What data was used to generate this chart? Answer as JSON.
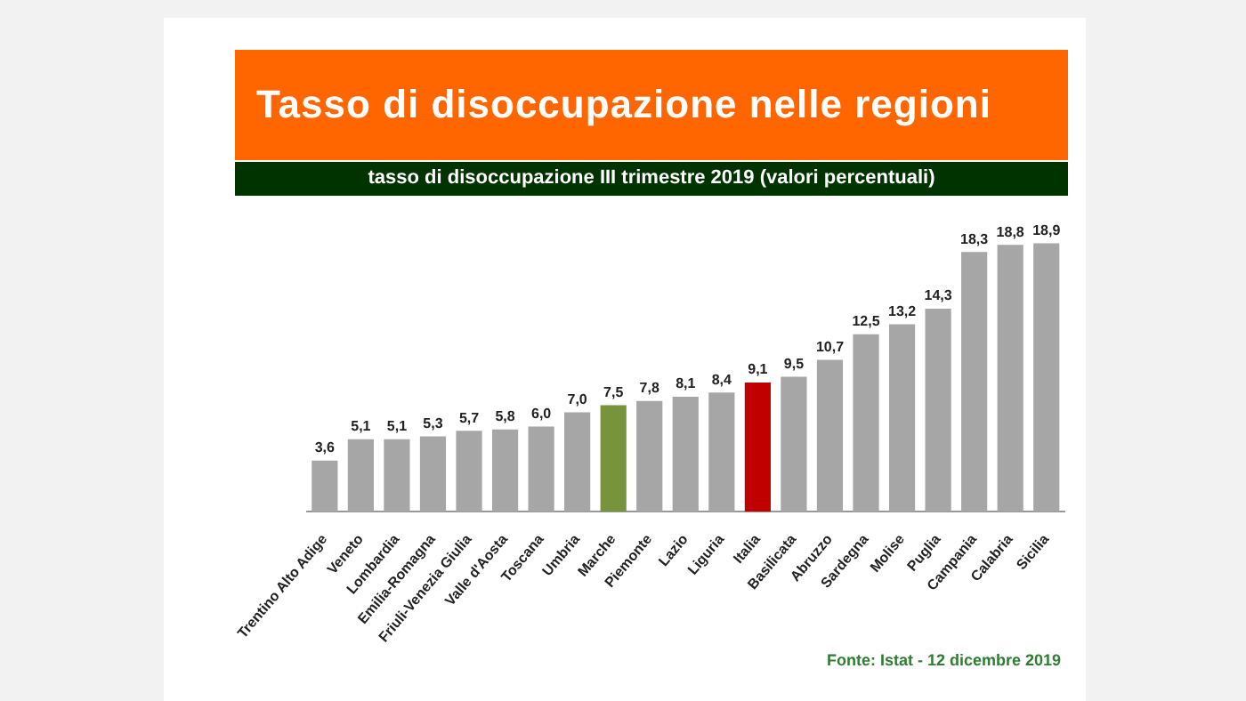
{
  "chart_data": {
    "type": "bar",
    "title": "Tasso di disoccupazione nelle regioni",
    "subtitle": "tasso di disoccupazione III trimestre 2019 (valori percentuali)",
    "categories": [
      "Trentino Alto Adige",
      "Veneto",
      "Lombardia",
      "Emilia-Romagna",
      "Friuli-Venezia Giulia",
      "Valle d'Aosta",
      "Toscana",
      "Umbria",
      "Marche",
      "Piemonte",
      "Lazio",
      "Liguria",
      "Italia",
      "Basilicata",
      "Abruzzo",
      "Sardegna",
      "Molise",
      "Puglia",
      "Campania",
      "Calabria",
      "Sicilia"
    ],
    "values": [
      3.6,
      5.1,
      5.1,
      5.3,
      5.7,
      5.8,
      6.0,
      7.0,
      7.5,
      7.8,
      8.1,
      8.4,
      9.1,
      9.5,
      10.7,
      12.5,
      13.2,
      14.3,
      18.3,
      18.8,
      18.9
    ],
    "value_labels": [
      "3,6",
      "5,1",
      "5,1",
      "5,3",
      "5,7",
      "5,8",
      "6,0",
      "7,0",
      "7,5",
      "7,8",
      "8,1",
      "8,4",
      "9,1",
      "9,5",
      "10,7",
      "12,5",
      "13,2",
      "14,3",
      "18,3",
      "18,8",
      "18,9"
    ],
    "colors": [
      "#a6a6a6",
      "#a6a6a6",
      "#a6a6a6",
      "#a6a6a6",
      "#a6a6a6",
      "#a6a6a6",
      "#a6a6a6",
      "#a6a6a6",
      "#77933c",
      "#a6a6a6",
      "#a6a6a6",
      "#a6a6a6",
      "#c00000",
      "#a6a6a6",
      "#a6a6a6",
      "#a6a6a6",
      "#a6a6a6",
      "#a6a6a6",
      "#a6a6a6",
      "#a6a6a6",
      "#a6a6a6"
    ],
    "tick_labels": "x",
    "legend": false,
    "grid": false,
    "annotations": [
      "Fonte: Istat  - 12 dicembre 2019"
    ]
  }
}
